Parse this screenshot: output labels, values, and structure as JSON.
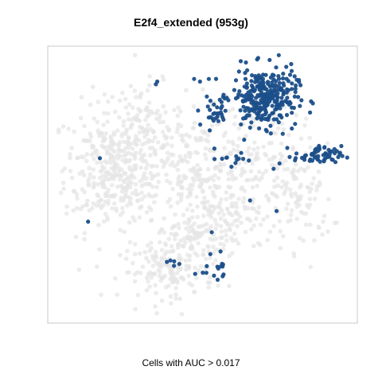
{
  "chart_data": {
    "type": "scatter",
    "title": "E2f4_extended (953g)",
    "caption": "Cells with AUC > 0.017",
    "xlabel": "",
    "ylabel": "",
    "axes_visible": false,
    "grid": false,
    "background_color": "#e6e6e6",
    "highlight_color": "#1b4f8a",
    "frame_color": "#c8c8c8",
    "series": [
      {
        "role": "background",
        "color": "#e6e6e6",
        "clusters": [
          {
            "cx": 0.17,
            "cy": 0.57,
            "sx": 0.07,
            "sy": 0.12,
            "n": 220
          },
          {
            "cx": 0.3,
            "cy": 0.7,
            "sx": 0.07,
            "sy": 0.09,
            "n": 150
          },
          {
            "cx": 0.25,
            "cy": 0.48,
            "sx": 0.08,
            "sy": 0.07,
            "n": 100
          },
          {
            "cx": 0.48,
            "cy": 0.49,
            "sx": 0.09,
            "sy": 0.13,
            "n": 230
          },
          {
            "cx": 0.65,
            "cy": 0.63,
            "sx": 0.09,
            "sy": 0.12,
            "n": 170
          },
          {
            "cx": 0.84,
            "cy": 0.45,
            "sx": 0.05,
            "sy": 0.1,
            "n": 90
          },
          {
            "cx": 0.38,
            "cy": 0.17,
            "sx": 0.08,
            "sy": 0.05,
            "n": 140
          },
          {
            "cx": 0.48,
            "cy": 0.28,
            "sx": 0.07,
            "sy": 0.04,
            "n": 70
          },
          {
            "cx": 0.6,
            "cy": 0.36,
            "sx": 0.06,
            "sy": 0.05,
            "n": 60
          }
        ]
      },
      {
        "role": "highlight",
        "color": "#1b4f8a",
        "clusters": [
          {
            "cx": 0.71,
            "cy": 0.83,
            "sx": 0.055,
            "sy": 0.055,
            "n": 300
          },
          {
            "cx": 0.89,
            "cy": 0.61,
            "sx": 0.04,
            "sy": 0.018,
            "n": 60
          },
          {
            "cx": 0.54,
            "cy": 0.77,
            "sx": 0.03,
            "sy": 0.03,
            "n": 25
          },
          {
            "cx": 0.6,
            "cy": 0.6,
            "sx": 0.025,
            "sy": 0.02,
            "n": 12
          },
          {
            "cx": 0.54,
            "cy": 0.2,
            "sx": 0.02,
            "sy": 0.025,
            "n": 14
          },
          {
            "cx": 0.39,
            "cy": 0.2,
            "sx": 0.01,
            "sy": 0.01,
            "n": 4
          }
        ],
        "points": [
          {
            "x": 0.34,
            "y": 0.88
          },
          {
            "x": 0.345,
            "y": 0.89
          },
          {
            "x": 0.52,
            "y": 0.9
          },
          {
            "x": 0.64,
            "y": 0.67
          },
          {
            "x": 0.63,
            "y": 0.62
          },
          {
            "x": 0.74,
            "y": 0.56
          },
          {
            "x": 0.76,
            "y": 0.58
          },
          {
            "x": 0.15,
            "y": 0.6
          },
          {
            "x": 0.11,
            "y": 0.36
          },
          {
            "x": 0.53,
            "y": 0.32
          },
          {
            "x": 0.66,
            "y": 0.44
          },
          {
            "x": 0.75,
            "y": 0.4
          },
          {
            "x": 0.57,
            "y": 0.16
          },
          {
            "x": 0.55,
            "y": 0.14
          },
          {
            "x": 0.42,
            "y": 0.2
          },
          {
            "x": 0.47,
            "y": 0.9
          },
          {
            "x": 0.49,
            "y": 0.89
          },
          {
            "x": 0.57,
            "y": 0.84
          }
        ]
      }
    ]
  }
}
